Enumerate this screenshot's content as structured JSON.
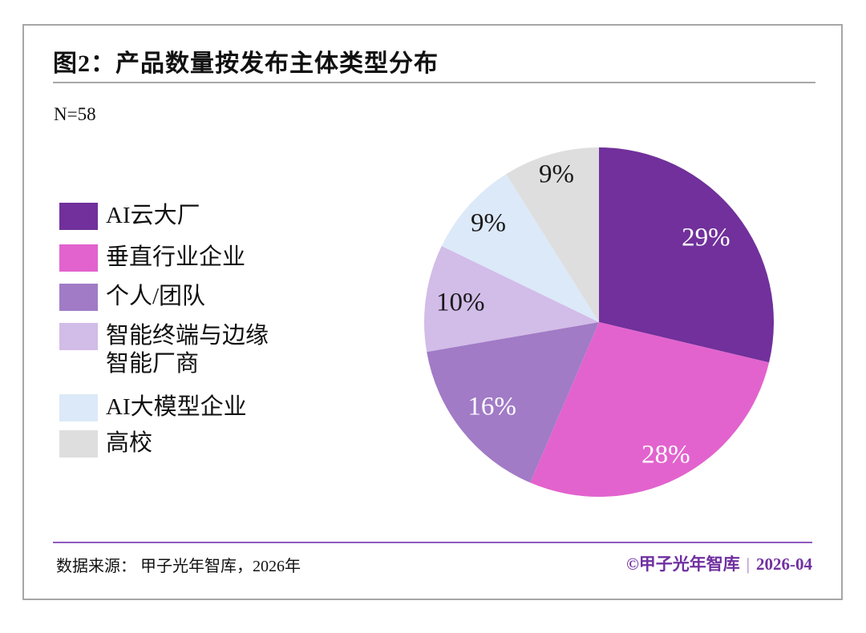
{
  "header": {
    "title": "图2：产品数量按发布主体类型分布",
    "sample_label": "N=58"
  },
  "chart_data": {
    "type": "pie",
    "title": "图2：产品数量按发布主体类型分布",
    "sample_size_label": "N=58",
    "start_angle_deg": 0,
    "direction": "clockwise",
    "legend_position": "left",
    "slices": [
      {
        "label": "AI云大厂",
        "legend_lines": [
          "AI云大厂"
        ],
        "value": 29,
        "percent_label": "29%",
        "color": "#71309B",
        "percent_label_color": "#FFFFFF"
      },
      {
        "label": "垂直行业企业",
        "legend_lines": [
          "垂直行业企业"
        ],
        "value": 28,
        "percent_label": "28%",
        "color": "#E263CE",
        "percent_label_color": "#FFFFFF"
      },
      {
        "label": "个人/团队",
        "legend_lines": [
          "个人/团队"
        ],
        "value": 16,
        "percent_label": "16%",
        "color": "#A17BC6",
        "percent_label_color": "#FFFFFF"
      },
      {
        "label": "智能终端与边缘智能厂商",
        "legend_lines": [
          "智能终端与边缘",
          "智能厂商"
        ],
        "value": 10,
        "percent_label": "10%",
        "color": "#D2BCE8",
        "percent_label_color": "#1A1A1A"
      },
      {
        "label": "AI大模型企业",
        "legend_lines": [
          "AI大模型企业"
        ],
        "value": 9,
        "percent_label": "9%",
        "color": "#DCE9F8",
        "percent_label_color": "#1A1A1A"
      },
      {
        "label": "高校",
        "legend_lines": [
          "高校"
        ],
        "value": 9,
        "percent_label": "9%",
        "color": "#DEDEDE",
        "percent_label_color": "#1A1A1A"
      }
    ]
  },
  "footer": {
    "source": "数据来源： 甲子光年智库，2026年",
    "brand": "©甲子光年智库",
    "separator": "|",
    "date": "2026-04",
    "accent_color": "#7030A0",
    "separator_color": "#9E74CB",
    "rule_color": "#8E5AC0"
  }
}
